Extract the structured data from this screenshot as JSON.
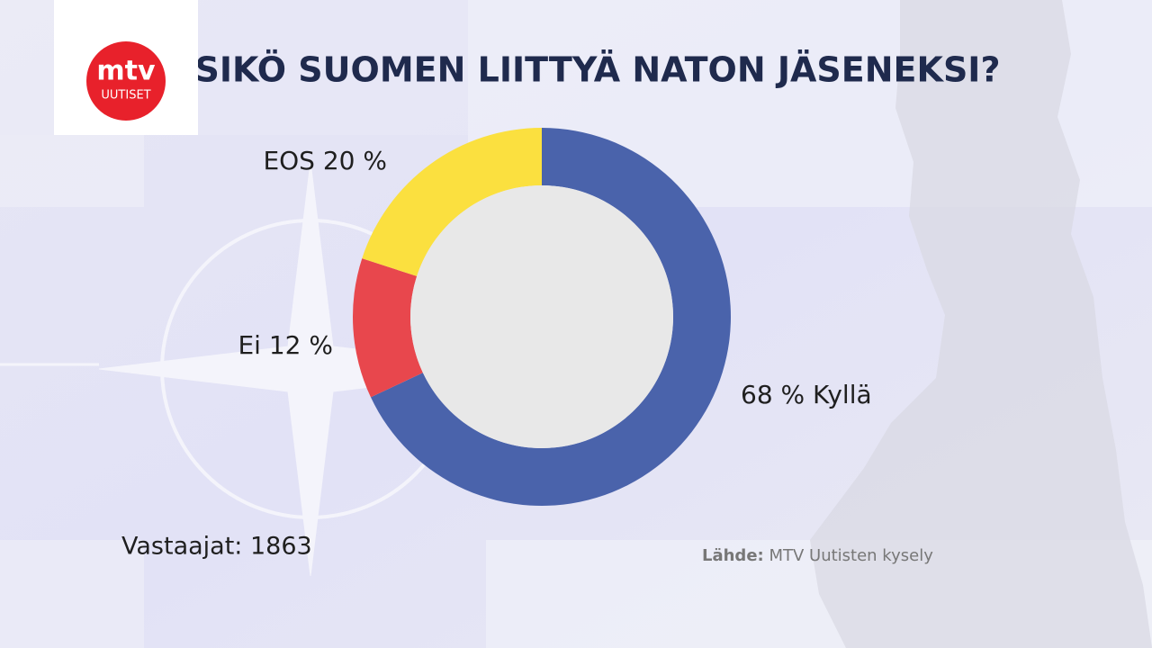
{
  "chart_data": {
    "type": "pie",
    "title": "PITÄISIKÖ SUOMEN LIITTYÄ NATON JÄSENEKSI?",
    "donut": true,
    "values": [
      68,
      12,
      20
    ],
    "value_labels": [
      "68 % Kyllä",
      "Ei 12 %",
      "EOS 20 %"
    ],
    "colors": [
      "#4a63ab",
      "#e8474d",
      "#fbe03f"
    ],
    "annotations": [
      "Vastaajat: 1863"
    ],
    "source": {
      "label": "Lähde:",
      "text": "MTV Uutisten kysely"
    }
  },
  "logo": {
    "name": "mtv",
    "subtitle": "UUTISET"
  }
}
